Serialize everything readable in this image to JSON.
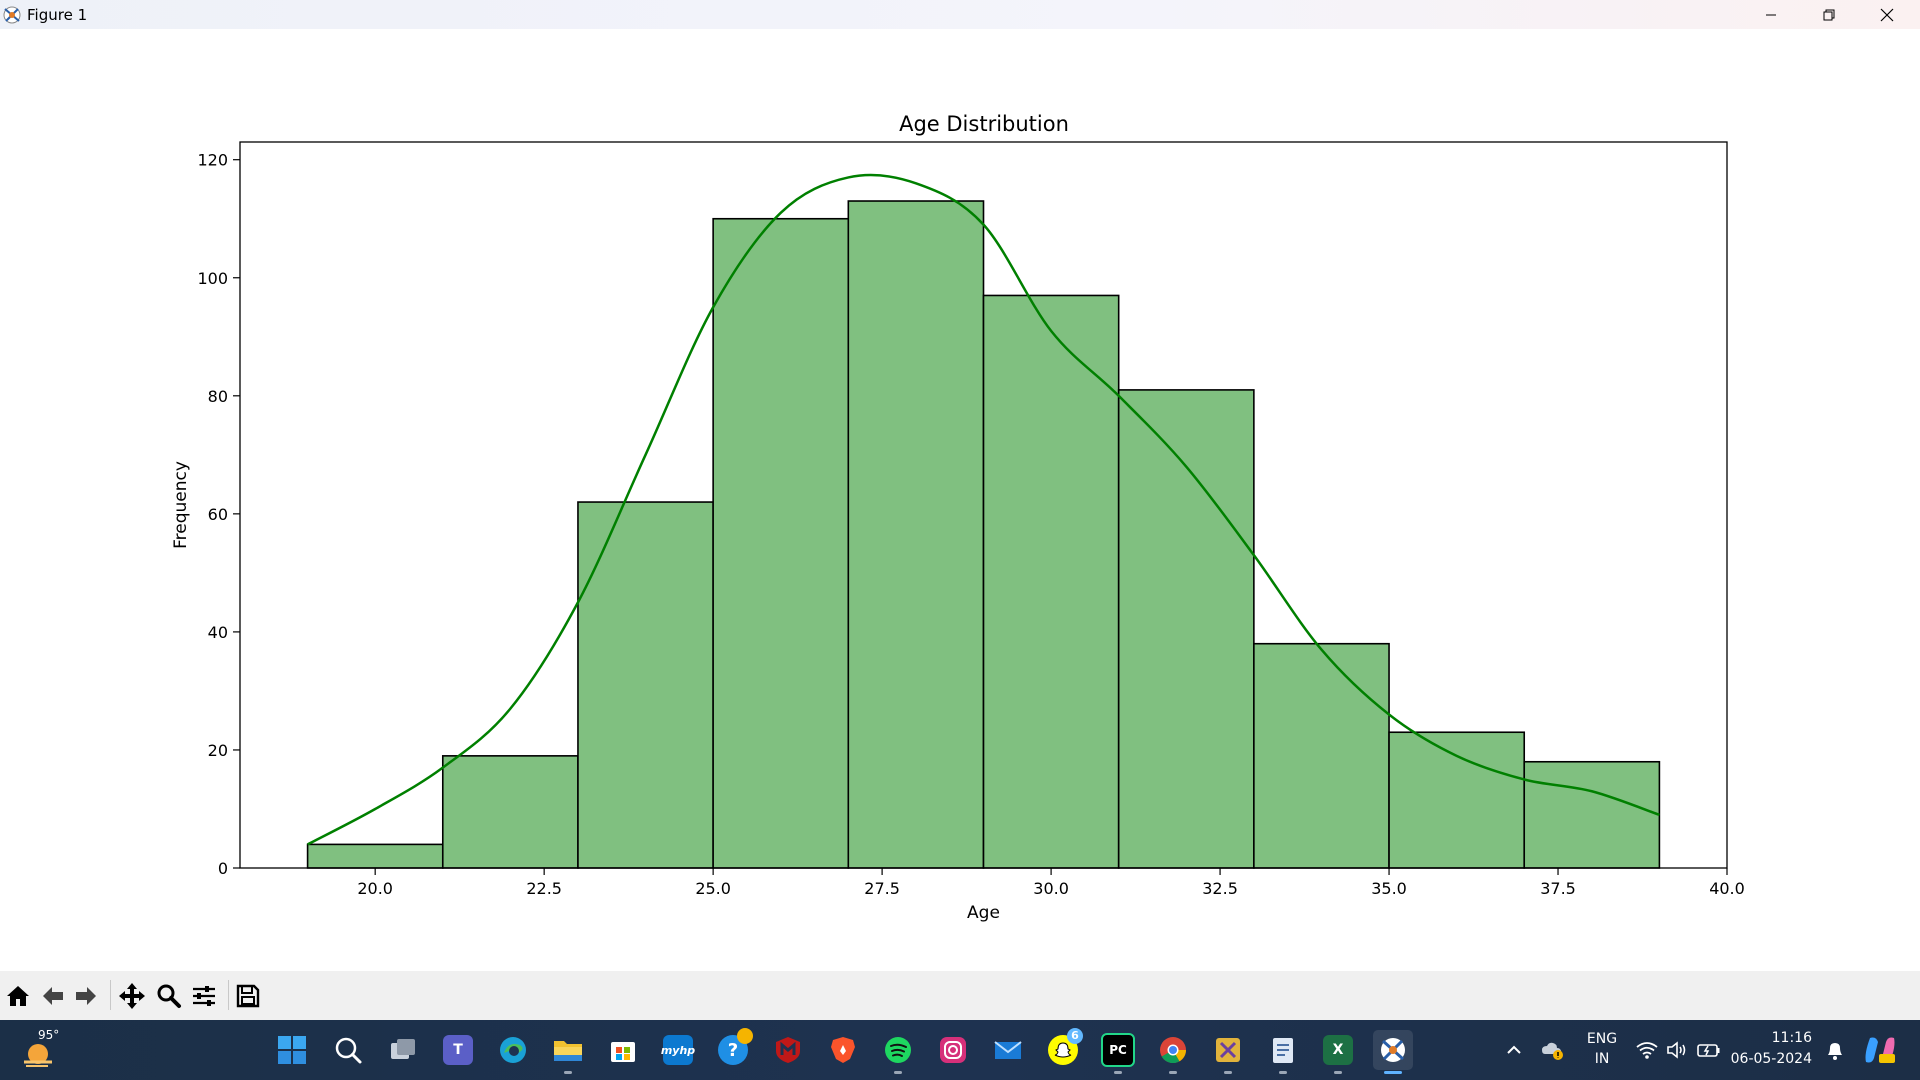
{
  "window": {
    "title": "Figure 1"
  },
  "colors": {
    "bar_fill": "#80c080",
    "bar_edge": "#000000",
    "kde_line": "#008000",
    "axis": "#000000"
  },
  "chart_data": {
    "type": "bar",
    "subtype": "histogram-with-kde",
    "title": "Age Distribution",
    "xlabel": "Age",
    "ylabel": "Frequency",
    "xlim": [
      18,
      40
    ],
    "ylim": [
      0,
      123
    ],
    "xticks": [
      20.0,
      22.5,
      25.0,
      27.5,
      30.0,
      32.5,
      35.0,
      37.5,
      40.0
    ],
    "xtick_labels": [
      "20.0",
      "22.5",
      "25.0",
      "27.5",
      "30.0",
      "32.5",
      "35.0",
      "37.5",
      "40.0"
    ],
    "yticks": [
      0,
      20,
      40,
      60,
      80,
      100,
      120
    ],
    "ytick_labels": [
      "0",
      "20",
      "40",
      "60",
      "80",
      "100",
      "120"
    ],
    "bins": [
      {
        "x0": 19,
        "x1": 21,
        "count": 4
      },
      {
        "x0": 21,
        "x1": 23,
        "count": 19
      },
      {
        "x0": 23,
        "x1": 25,
        "count": 62
      },
      {
        "x0": 25,
        "x1": 27,
        "count": 110
      },
      {
        "x0": 27,
        "x1": 29,
        "count": 113
      },
      {
        "x0": 29,
        "x1": 31,
        "count": 97
      },
      {
        "x0": 31,
        "x1": 33,
        "count": 81
      },
      {
        "x0": 33,
        "x1": 35,
        "count": 38
      },
      {
        "x0": 35,
        "x1": 37,
        "count": 23
      },
      {
        "x0": 37,
        "x1": 39,
        "count": 18
      }
    ],
    "kde": {
      "x": [
        19,
        20,
        21,
        22,
        23,
        24,
        25,
        26,
        27,
        28,
        29,
        30,
        31,
        32,
        33,
        34,
        35,
        36,
        37,
        38,
        39
      ],
      "y": [
        4,
        10,
        17,
        27,
        45,
        70,
        95,
        111,
        117,
        116,
        109,
        91,
        80,
        68,
        53,
        37,
        26,
        19,
        15,
        13,
        9
      ]
    },
    "grid": false
  },
  "toolbar": {
    "buttons": [
      "home-icon",
      "back-arrow-icon",
      "forward-arrow-icon",
      "pan-move-icon",
      "zoom-magnifier-icon",
      "configure-subplots-icon",
      "save-floppy-icon"
    ]
  },
  "taskbar": {
    "weather": {
      "temp": "95°"
    },
    "apps": [
      "windows-start-icon",
      "search-icon",
      "task-view-icon",
      "teams-icon",
      "edge-icon",
      "file-explorer-icon",
      "store-icon",
      "myhp-icon",
      "help-icon",
      "mcafee-icon",
      "brave-icon",
      "spotify-icon",
      "instagram-icon",
      "mail-icon",
      "snapchat-icon",
      "pycharm-icon",
      "chrome-icon",
      "snipping-tool-icon",
      "notepad-icon",
      "excel-icon",
      "figure-app-icon"
    ],
    "labels": {
      "myhp": "myhp",
      "pycharm": "PC",
      "excel": "X"
    },
    "snapchat_badge": "6",
    "language": {
      "line1": "ENG",
      "line2": "IN"
    },
    "clock": {
      "time": "11:16",
      "date": "06-05-2024"
    }
  }
}
